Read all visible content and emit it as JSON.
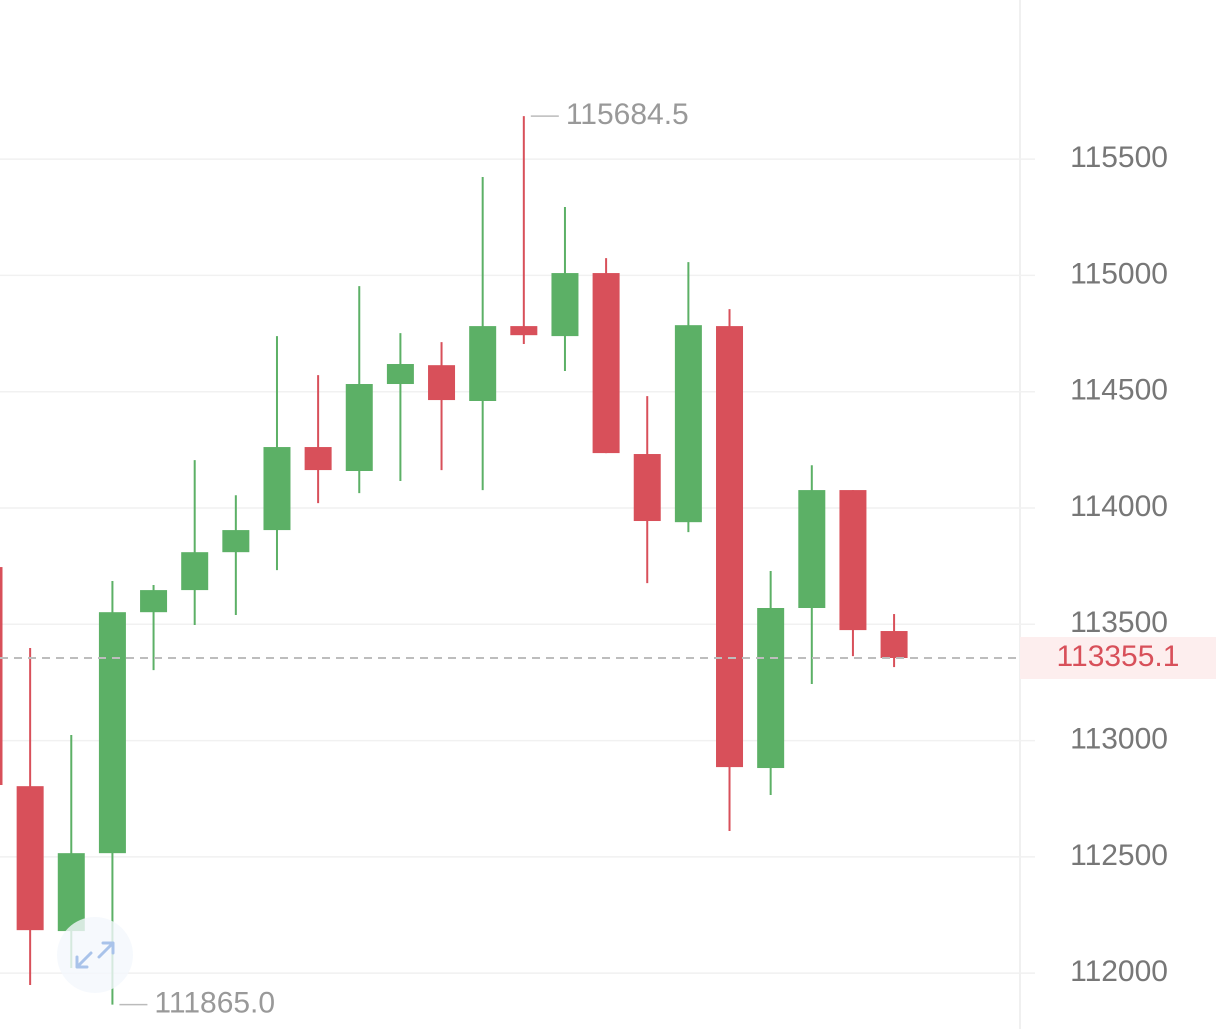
{
  "chart_data": {
    "type": "candlestick",
    "open": [
      113746,
      112804,
      112181,
      112516,
      113552,
      113647,
      113810,
      113905,
      114262,
      114159,
      114533,
      114614,
      114460,
      114782,
      114739,
      115010,
      114232,
      113939,
      114782,
      112882,
      113570,
      114077,
      113471
    ],
    "high": [
      113746,
      113398,
      113024,
      113686,
      113669,
      114206,
      114055,
      114739,
      114571,
      114954,
      114752,
      114713,
      115423,
      115684.5,
      115294,
      115074,
      114481,
      115057,
      114855,
      113729,
      114184,
      114077,
      113544
    ],
    "low": [
      112809,
      111949,
      112022,
      111865,
      113303,
      113497,
      113540,
      113733,
      114021,
      114064,
      114116,
      114163,
      114077,
      114705,
      114589,
      114236,
      113677,
      113896,
      112611,
      112766,
      113243,
      113363,
      113316
    ],
    "close": [
      112809,
      112185,
      112516,
      113552,
      113647,
      113810,
      113905,
      114262,
      114163,
      114533,
      114619,
      114464,
      114782,
      114743,
      115010,
      114236,
      113944,
      114786,
      112886,
      113570,
      114077,
      113475,
      113355.1
    ],
    "up_color": "#5cb066",
    "down_color": "#d8505a",
    "ylim": [
      111760,
      116184
    ],
    "yticks": [
      112000,
      112500,
      113000,
      113500,
      114000,
      114500,
      115000,
      115500
    ],
    "grid": true,
    "annotations": [
      {
        "value": 115684.5,
        "label": "115684.5"
      },
      {
        "value": 111865,
        "label": "111865.0"
      }
    ],
    "last_price": {
      "value": 113355.1,
      "label": "113355.1"
    }
  }
}
